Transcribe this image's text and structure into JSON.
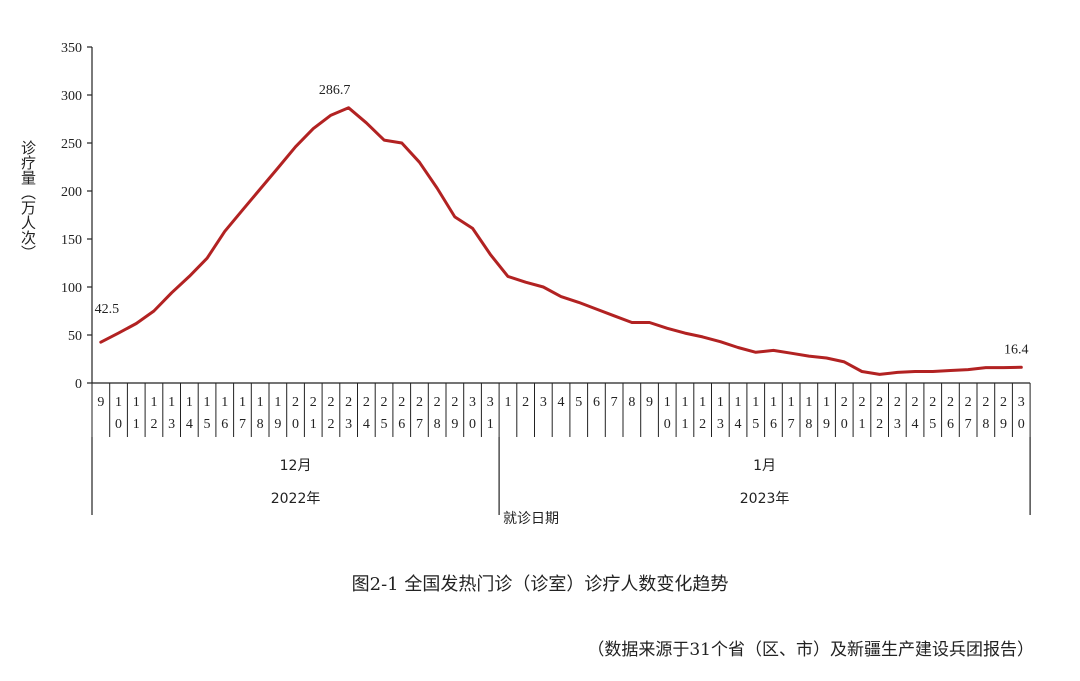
{
  "chart_data": {
    "type": "line",
    "ylabel": "诊疗量（万人次）",
    "xlabel": "就诊日期",
    "ylim": [
      0,
      350
    ],
    "yticks": [
      0,
      50,
      100,
      150,
      200,
      250,
      300,
      350
    ],
    "line_color": "#b22222",
    "categories": [
      "9",
      "10",
      "11",
      "12",
      "13",
      "14",
      "15",
      "16",
      "17",
      "18",
      "19",
      "20",
      "21",
      "22",
      "23",
      "24",
      "25",
      "26",
      "27",
      "28",
      "29",
      "30",
      "31",
      "1",
      "2",
      "3",
      "4",
      "5",
      "6",
      "7",
      "8",
      "9",
      "10",
      "11",
      "12",
      "13",
      "14",
      "15",
      "16",
      "17",
      "18",
      "19",
      "20",
      "21",
      "22",
      "23",
      "24",
      "25",
      "26",
      "27",
      "28",
      "29",
      "30"
    ],
    "x_groups": [
      {
        "month": "12月",
        "year": "2022年",
        "start": 0,
        "end": 22
      },
      {
        "month": "1月",
        "year": "2023年",
        "start": 23,
        "end": 52
      }
    ],
    "series": [
      {
        "values": [
          42.5,
          52,
          62,
          75,
          94,
          111,
          130,
          158,
          180,
          202,
          224,
          246,
          265,
          279,
          286.7,
          271,
          253,
          250,
          230,
          203,
          173,
          161,
          134,
          111,
          105,
          100,
          90,
          84,
          77,
          70,
          63,
          63,
          57,
          52,
          48,
          43,
          37,
          32,
          34,
          31,
          28,
          26,
          22,
          12,
          9,
          11,
          12,
          12,
          13,
          14,
          16,
          16,
          16.4
        ]
      }
    ],
    "data_labels": [
      {
        "index": 0,
        "text": "42.5"
      },
      {
        "index": 14,
        "text": "286.7"
      },
      {
        "index": 52,
        "text": "16.4"
      }
    ]
  },
  "caption": "图2-1  全国发热门诊（诊室）诊疗人数变化趋势",
  "source_note": "（数据来源于31个省（区、市）及新疆生产建设兵团报告）"
}
